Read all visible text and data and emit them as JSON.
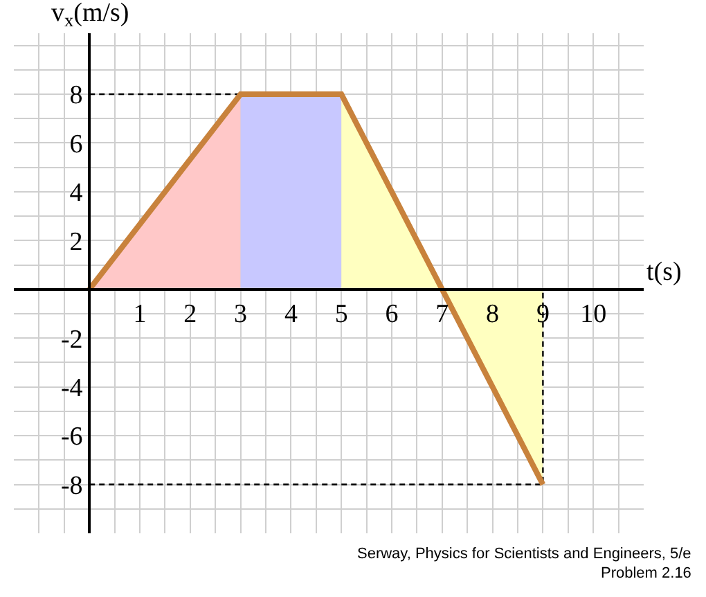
{
  "chart_data": {
    "type": "line",
    "xlabel": "t(s)",
    "ylabel": "v$_{x}$(m/s)",
    "series": [
      {
        "type": "area",
        "color": "#ffc8c8",
        "x": [
          0,
          3
        ],
        "values": [
          0,
          8
        ]
      },
      {
        "type": "area",
        "color": "#c8c8ff",
        "x": [
          3,
          5
        ],
        "values": [
          8,
          8
        ]
      },
      {
        "type": "area",
        "color": "#ffffc0",
        "x": [
          5,
          7
        ],
        "values": [
          8,
          0
        ]
      },
      {
        "type": "area",
        "color": "#ffffc0",
        "x": [
          7,
          9
        ],
        "values": [
          0,
          -8
        ]
      },
      {
        "color": "#000000",
        "line_style": "dashed",
        "x": [
          0,
          3
        ],
        "values": [
          8,
          8
        ]
      },
      {
        "color": "#000000",
        "line_style": "dashed",
        "x": [
          0,
          9,
          9
        ],
        "values": [
          -8,
          -8,
          0
        ]
      },
      {
        "color": "#c8823c",
        "line_style": "solid",
        "x": [
          0,
          3,
          5,
          7,
          9
        ],
        "values": [
          0,
          8,
          8,
          0,
          -8
        ]
      }
    ],
    "xlim": [
      -1.5,
      11
    ],
    "ylim": [
      -10,
      10.5
    ],
    "xticks": [
      {
        "value": -1,
        "label": null
      },
      {
        "value": -0.5,
        "label": null
      },
      {
        "value": 0,
        "label": null
      },
      {
        "value": 0.5,
        "label": null
      },
      1,
      {
        "value": 1.5,
        "label": null
      },
      2,
      {
        "value": 2.5,
        "label": null
      },
      3,
      {
        "value": 3.5,
        "label": null
      },
      4,
      {
        "value": 4.5,
        "label": null
      },
      5,
      {
        "value": 5.5,
        "label": null
      },
      6,
      {
        "value": 6.5,
        "label": null
      },
      7,
      {
        "value": 7.5,
        "label": null
      },
      8,
      {
        "value": 8.5,
        "label": null
      },
      9,
      {
        "value": 9.5,
        "label": null
      },
      10,
      {
        "value": 10.5,
        "label": null
      }
    ],
    "yticks": [
      {
        "value": -9,
        "label": null
      },
      -8,
      {
        "value": -7,
        "label": null
      },
      -6,
      {
        "value": -5,
        "label": null
      },
      -4,
      {
        "value": -3,
        "label": null
      },
      -2,
      {
        "value": -1,
        "label": null
      },
      {
        "value": 0,
        "label": null
      },
      {
        "value": 1,
        "label": null
      },
      2,
      {
        "value": 3,
        "label": null
      },
      4,
      {
        "value": 5,
        "label": null
      },
      6,
      {
        "value": 7,
        "label": null
      },
      8,
      {
        "value": 9,
        "label": null
      },
      {
        "value": 10,
        "label": null
      }
    ],
    "grid": true,
    "annotations": [
      "Serway, Physics for Scientists and Engineers, 5/e",
      "Problem 2.16"
    ]
  }
}
